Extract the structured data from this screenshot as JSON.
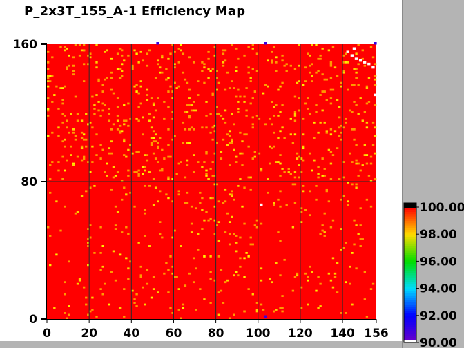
{
  "title": "P_2x3T_155_A-1 Efficiency Map",
  "colors": {
    "panel": "#b4b4b4",
    "map_base": "#ff0000"
  },
  "chart_data": {
    "type": "heatmap",
    "title": "P_2x3T_155_A-1 Efficiency Map",
    "xlabel": "",
    "ylabel": "",
    "x_range": [
      0,
      156
    ],
    "y_range": [
      0,
      160
    ],
    "x_ticks": [
      "0",
      "20",
      "40",
      "60",
      "80",
      "100",
      "120",
      "140",
      "156"
    ],
    "y_ticks": [
      "0",
      "80",
      "160"
    ],
    "grid_x": [
      20,
      40,
      60,
      80,
      100,
      120,
      140
    ],
    "grid_y": [
      80
    ],
    "grid": true,
    "colorbar": {
      "range": [
        90.0,
        100.0
      ],
      "ticks": [
        "90.00",
        "92.00",
        "94.00",
        "96.00",
        "98.00",
        "100.00"
      ],
      "placement": "right"
    },
    "dominant_value": 100.0,
    "notable_points": [
      {
        "x": 101,
        "y": 66,
        "value": 90.0
      },
      {
        "x": 142,
        "y": 155,
        "value": 90.0
      },
      {
        "x": 144,
        "y": 153,
        "value": 90.0
      },
      {
        "x": 146,
        "y": 151,
        "value": 90.0
      },
      {
        "x": 148,
        "y": 150,
        "value": 90.0
      },
      {
        "x": 150,
        "y": 149,
        "value": 90.0
      },
      {
        "x": 152,
        "y": 148,
        "value": 90.0
      },
      {
        "x": 154,
        "y": 146,
        "value": 90.0
      },
      {
        "x": 155,
        "y": 130,
        "value": 90.0
      },
      {
        "x": 145,
        "y": 157,
        "value": 90.0
      },
      {
        "x": 52,
        "y": 160,
        "value": 91.0
      },
      {
        "x": 103,
        "y": 160,
        "value": 91.0
      },
      {
        "x": 103,
        "y": 1,
        "value": 91.0
      },
      {
        "x": 155,
        "y": 160,
        "value": 91.0
      }
    ]
  }
}
